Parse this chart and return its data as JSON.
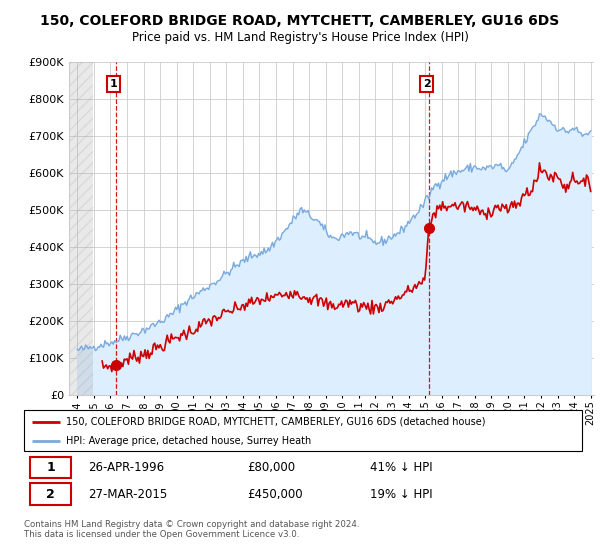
{
  "title": "150, COLEFORD BRIDGE ROAD, MYTCHETT, CAMBERLEY, GU16 6DS",
  "subtitle": "Price paid vs. HM Land Registry's House Price Index (HPI)",
  "legend_line1": "150, COLEFORD BRIDGE ROAD, MYTCHETT, CAMBERLEY, GU16 6DS (detached house)",
  "legend_line2": "HPI: Average price, detached house, Surrey Heath",
  "annotation1_label": "1",
  "annotation1_date": "26-APR-1996",
  "annotation1_price": "£80,000",
  "annotation1_hpi": "41% ↓ HPI",
  "annotation2_label": "2",
  "annotation2_date": "27-MAR-2015",
  "annotation2_price": "£450,000",
  "annotation2_hpi": "19% ↓ HPI",
  "footer": "Contains HM Land Registry data © Crown copyright and database right 2024.\nThis data is licensed under the Open Government Licence v3.0.",
  "red_color": "#cc0000",
  "blue_color": "#7aaadd",
  "blue_fill": "#ddeeff",
  "marker_x1": 1996.32,
  "marker_y1": 80000,
  "marker_x2": 2015.24,
  "marker_y2": 450000,
  "ylim": [
    0,
    900000
  ],
  "xlim": [
    1993.5,
    2025.2
  ],
  "yticks": [
    0,
    100000,
    200000,
    300000,
    400000,
    500000,
    600000,
    700000,
    800000,
    900000
  ],
  "xticks": [
    1994,
    1995,
    1996,
    1997,
    1998,
    1999,
    2000,
    2001,
    2002,
    2003,
    2004,
    2005,
    2006,
    2007,
    2008,
    2009,
    2010,
    2011,
    2012,
    2013,
    2014,
    2015,
    2016,
    2017,
    2018,
    2019,
    2020,
    2021,
    2022,
    2023,
    2024,
    2025
  ]
}
